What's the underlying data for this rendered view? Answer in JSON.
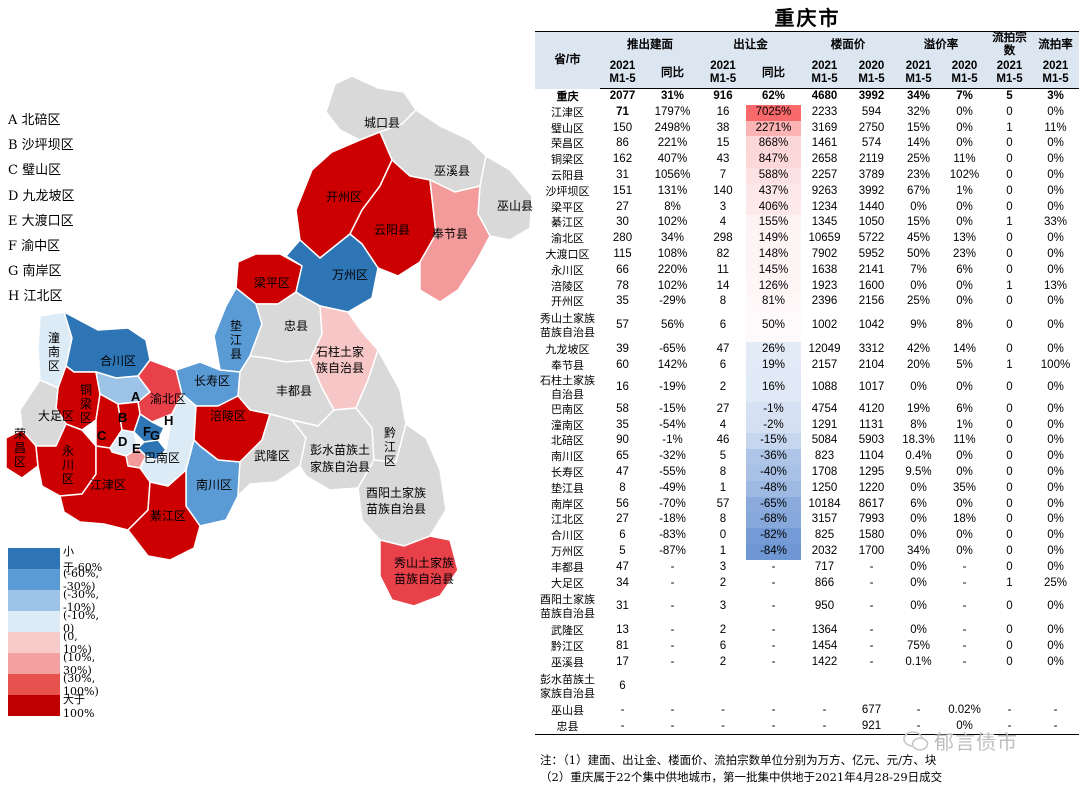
{
  "title": "重庆市",
  "abbr_legend": [
    "A 北碚区",
    "B 沙坪坝区",
    "C 璧山区",
    "D 九龙坡区",
    "E 大渡口区",
    "F 渝中区",
    "G 南岸区",
    "H 江北区"
  ],
  "color_legend": [
    {
      "label": "小于-60%",
      "color": "#2e75b6"
    },
    {
      "label": "(-60%, -30%)",
      "color": "#5b9bd5"
    },
    {
      "label": "(-30%, -10%)",
      "color": "#9dc3e6"
    },
    {
      "label": "(-10%, 0)",
      "color": "#ddebf7"
    },
    {
      "label": "(0, 10%)",
      "color": "#f8cbcb"
    },
    {
      "label": "(10%, 30%)",
      "color": "#f4a0a0"
    },
    {
      "label": "(30%, 100%)",
      "color": "#e8524e"
    },
    {
      "label": "大于100%",
      "color": "#c00000"
    }
  ],
  "map_labels": {
    "chengkou": "城口县",
    "wuxi": "巫溪县",
    "wushan": "巫山县",
    "kaizhou": "开州区",
    "yunyang": "云阳县",
    "fengjie": "奉节县",
    "liangping": "梁平区",
    "wanzhou": "万州区",
    "dianjiang": "垫江县",
    "zhongxian": "忠县",
    "shizhu": "石柱土家族自治县",
    "tongnan": "潼南区",
    "hechuan": "合川区",
    "tongliang": "铜梁区",
    "changshou": "长寿区",
    "fengdu": "丰都县",
    "dazu": "大足区",
    "rongchang": "荣昌区",
    "yongchuan": "永川区",
    "banan": "巴南区",
    "fuling": "涪陵区",
    "wulong": "武隆区",
    "pengshui": "彭水苗族土家族自治县",
    "qianjiang": "黔江区",
    "jiangjin": "江津区",
    "nanchuan": "南川区",
    "qijiang": "綦江区",
    "youyang": "酉阳土家族苗族自治县",
    "xiushan": "秀山土家族苗族自治县",
    "letters": [
      "A",
      "B",
      "C",
      "D",
      "E",
      "F",
      "G",
      "H"
    ]
  },
  "table": {
    "col_province": "省/市",
    "groups": [
      "推出建面",
      "出让金",
      "楼面价",
      "溢价率",
      "流拍宗数",
      "流拍率"
    ],
    "sub": [
      "2021 M1-5",
      "同比",
      "2021 M1-5",
      "同比",
      "2021 M1-5",
      "2020 M1-5",
      "2021 M1-5",
      "2020 M1-5",
      "2021 M1-5",
      "2021 M1-5"
    ],
    "rows": [
      {
        "name": "重庆",
        "v": [
          "2077",
          "31%",
          "916",
          "62%",
          "4680",
          "3992",
          "34%",
          "7%",
          "5",
          "3%"
        ],
        "c": "#ffffff",
        "total": true
      },
      {
        "name": "江津区",
        "v": [
          "71",
          "1797%",
          "16",
          "7025%",
          "2233",
          "594",
          "32%",
          "0%",
          "0",
          "0%"
        ],
        "c": "#f8696b",
        "bold0": true
      },
      {
        "name": "璧山区",
        "v": [
          "150",
          "2498%",
          "38",
          "2271%",
          "3169",
          "2750",
          "15%",
          "0%",
          "1",
          "11%"
        ],
        "c": "#fbb3b4"
      },
      {
        "name": "荣昌区",
        "v": [
          "86",
          "221%",
          "15",
          "868%",
          "1461",
          "574",
          "14%",
          "0%",
          "0",
          "0%"
        ],
        "c": "#fcd7d8"
      },
      {
        "name": "铜梁区",
        "v": [
          "162",
          "407%",
          "43",
          "847%",
          "2658",
          "2119",
          "25%",
          "11%",
          "0",
          "0%"
        ],
        "c": "#fcd8d9"
      },
      {
        "name": "云阳县",
        "v": [
          "31",
          "1056%",
          "7",
          "588%",
          "2257",
          "3789",
          "23%",
          "102%",
          "0",
          "0%"
        ],
        "c": "#fde2e3"
      },
      {
        "name": "沙坪坝区",
        "v": [
          "151",
          "131%",
          "140",
          "437%",
          "9263",
          "3992",
          "67%",
          "1%",
          "0",
          "0%"
        ],
        "c": "#fde8e9"
      },
      {
        "name": "梁平区",
        "v": [
          "27",
          "8%",
          "3",
          "406%",
          "1234",
          "1440",
          "0%",
          "0%",
          "0",
          "0%"
        ],
        "c": "#fde9ea"
      },
      {
        "name": "綦江区",
        "v": [
          "30",
          "102%",
          "4",
          "155%",
          "1345",
          "1050",
          "15%",
          "0%",
          "1",
          "33%"
        ],
        "c": "#fdf3f4"
      },
      {
        "name": "渝北区",
        "v": [
          "280",
          "34%",
          "298",
          "149%",
          "10659",
          "5722",
          "45%",
          "13%",
          "0",
          "0%"
        ],
        "c": "#fdf4f5"
      },
      {
        "name": "大渡口区",
        "v": [
          "115",
          "108%",
          "82",
          "148%",
          "7902",
          "5952",
          "50%",
          "23%",
          "0",
          "0%"
        ],
        "c": "#fdf4f5"
      },
      {
        "name": "永川区",
        "v": [
          "66",
          "220%",
          "11",
          "145%",
          "1638",
          "2141",
          "7%",
          "6%",
          "0",
          "0%"
        ],
        "c": "#fdf4f5"
      },
      {
        "name": "涪陵区",
        "v": [
          "78",
          "102%",
          "14",
          "126%",
          "1923",
          "1600",
          "0%",
          "0%",
          "1",
          "13%"
        ],
        "c": "#fdf5f6"
      },
      {
        "name": "开州区",
        "v": [
          "35",
          "-29%",
          "8",
          "81%",
          "2396",
          "2156",
          "25%",
          "0%",
          "0",
          "0%"
        ],
        "c": "#fef8f9"
      },
      {
        "name": "秀山土家族苗族自治县",
        "v": [
          "57",
          "56%",
          "6",
          "50%",
          "1002",
          "1042",
          "9%",
          "8%",
          "0",
          "0%"
        ],
        "c": "#fefafb",
        "two": true
      },
      {
        "name": "九龙坡区",
        "v": [
          "39",
          "-65%",
          "47",
          "26%",
          "12049",
          "3312",
          "42%",
          "14%",
          "0",
          "0%"
        ],
        "c": "#e3ebf7"
      },
      {
        "name": "奉节县",
        "v": [
          "60",
          "142%",
          "6",
          "19%",
          "2157",
          "2104",
          "20%",
          "5%",
          "1",
          "100%"
        ],
        "c": "#e1eaf6"
      },
      {
        "name": "石柱土家族自治县",
        "v": [
          "16",
          "-19%",
          "2",
          "16%",
          "1088",
          "1017",
          "0%",
          "0%",
          "0",
          "0%"
        ],
        "c": "#e0e9f6",
        "two": true
      },
      {
        "name": "巴南区",
        "v": [
          "58",
          "-15%",
          "27",
          "-1%",
          "4754",
          "4120",
          "19%",
          "6%",
          "0",
          "0%"
        ],
        "c": "#d6e1f3"
      },
      {
        "name": "潼南区",
        "v": [
          "35",
          "-54%",
          "4",
          "-2%",
          "1291",
          "1131",
          "8%",
          "1%",
          "0",
          "0%"
        ],
        "c": "#d5e0f3"
      },
      {
        "name": "北碚区",
        "v": [
          "90",
          "-1%",
          "46",
          "-15%",
          "5084",
          "5903",
          "18.3%",
          "11%",
          "0",
          "0%"
        ],
        "c": "#c6d6ee"
      },
      {
        "name": "南川区",
        "v": [
          "65",
          "-32%",
          "5",
          "-36%",
          "823",
          "1104",
          "0.4%",
          "0%",
          "0",
          "0%"
        ],
        "c": "#aec5e7"
      },
      {
        "name": "长寿区",
        "v": [
          "47",
          "-55%",
          "8",
          "-40%",
          "1708",
          "1295",
          "9.5%",
          "0%",
          "0",
          "0%"
        ],
        "c": "#a9c1e5"
      },
      {
        "name": "垫江县",
        "v": [
          "8",
          "-49%",
          "1",
          "-48%",
          "1250",
          "1220",
          "0%",
          "35%",
          "0",
          "0%"
        ],
        "c": "#9fbae2"
      },
      {
        "name": "南岸区",
        "v": [
          "56",
          "-70%",
          "57",
          "-65%",
          "10184",
          "8617",
          "6%",
          "0%",
          "0",
          "0%"
        ],
        "c": "#8aabdc"
      },
      {
        "name": "江北区",
        "v": [
          "27",
          "-18%",
          "8",
          "-68%",
          "3157",
          "7993",
          "0%",
          "18%",
          "0",
          "0%"
        ],
        "c": "#86a8db"
      },
      {
        "name": "合川区",
        "v": [
          "6",
          "-83%",
          "0",
          "-82%",
          "825",
          "1580",
          "0%",
          "0%",
          "0",
          "0%"
        ],
        "c": "#749bd5"
      },
      {
        "name": "万州区",
        "v": [
          "5",
          "-87%",
          "1",
          "-84%",
          "2032",
          "1700",
          "34%",
          "0%",
          "0",
          "0%"
        ],
        "c": "#6f97d3"
      },
      {
        "name": "丰都县",
        "v": [
          "47",
          "-",
          "3",
          "-",
          "717",
          "-",
          "0%",
          "-",
          "0",
          "0%"
        ],
        "c": "#ffffff"
      },
      {
        "name": "大足区",
        "v": [
          "34",
          "-",
          "2",
          "-",
          "866",
          "-",
          "0%",
          "-",
          "1",
          "25%"
        ],
        "c": "#ffffff"
      },
      {
        "name": "酉阳土家族苗族自治县",
        "v": [
          "31",
          "-",
          "3",
          "-",
          "950",
          "-",
          "0%",
          "-",
          "0",
          "0%"
        ],
        "c": "#ffffff",
        "two": true
      },
      {
        "name": "武隆区",
        "v": [
          "13",
          "-",
          "2",
          "-",
          "1364",
          "-",
          "0%",
          "-",
          "0",
          "0%"
        ],
        "c": "#ffffff"
      },
      {
        "name": "黔江区",
        "v": [
          "81",
          "-",
          "6",
          "-",
          "1454",
          "-",
          "75%",
          "-",
          "0",
          "0%"
        ],
        "c": "#ffffff"
      },
      {
        "name": "巫溪县",
        "v": [
          "17",
          "-",
          "2",
          "-",
          "1422",
          "-",
          "0.1%",
          "-",
          "0",
          "0%"
        ],
        "c": "#ffffff"
      },
      {
        "name": "彭水苗族土家族自治县",
        "v": [
          "6",
          "",
          "",
          "",
          "",
          "",
          "",
          "",
          "",
          ""
        ],
        "c": "#ffffff",
        "two": true
      },
      {
        "name": "巫山县",
        "v": [
          "-",
          "-",
          "-",
          "-",
          "-",
          "677",
          "-",
          "0.02%",
          "-",
          "-"
        ],
        "c": "#ffffff"
      },
      {
        "name": "忠县",
        "v": [
          "-",
          "-",
          "-",
          "-",
          "-",
          "921",
          "-",
          "0%",
          "-",
          "-"
        ],
        "c": "#ffffff"
      }
    ]
  },
  "footnotes": [
    "注：（1）建面、出让金、楼面价、流拍宗数单位分别为万方、亿元、元/方、块",
    "（2）重庆属于22个集中供地城市，第一批集中供地于2021年4月28-29日成交"
  ],
  "watermark": "郁言债市",
  "colors": {
    "red_dark": "#cc0000",
    "red_mid": "#e8414a",
    "red_light": "#f39a9a",
    "pink": "#f7c6c6",
    "blue_dark": "#2e75b6",
    "blue_mid": "#5b9bd5",
    "blue_light": "#9dc3e6",
    "blue_pale": "#ddebf7",
    "grey": "#d9d9d9",
    "header_bg": "#dce6f1"
  }
}
